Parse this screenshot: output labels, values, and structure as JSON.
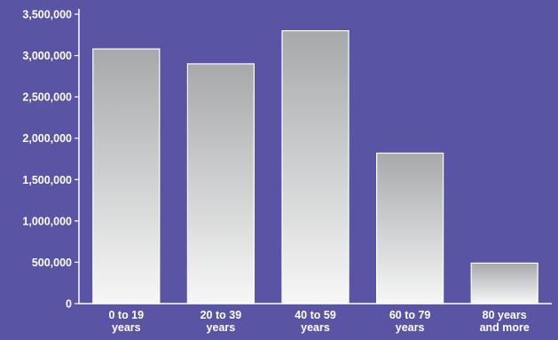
{
  "chart_data": {
    "type": "bar",
    "categories": [
      [
        "0 to 19",
        "years"
      ],
      [
        "20 to 39",
        "years"
      ],
      [
        "40 to 59",
        "years"
      ],
      [
        "60 to 79",
        "years"
      ],
      [
        "80 years",
        "and more"
      ]
    ],
    "values": [
      3080000,
      2900000,
      3300000,
      1820000,
      490000
    ],
    "title": "",
    "xlabel": "",
    "ylabel": "",
    "ylim": [
      0,
      3500000
    ],
    "yticks": [
      0,
      500000,
      1000000,
      1500000,
      2000000,
      2500000,
      3000000,
      3500000
    ],
    "ytick_labels": [
      "0",
      "500,000",
      "1,000,000",
      "1,500,000",
      "2,000,000",
      "2,500,000",
      "3,000,000",
      "3,500,000"
    ],
    "grid": false,
    "legend": "none",
    "colors": {
      "background": "#5a54a4",
      "bar_top": "#a6a8aa",
      "bar_bottom": "#f7f7f7",
      "bar_edge": "#ffffff",
      "axis": "#ffffff",
      "text": "#ffffff"
    }
  }
}
